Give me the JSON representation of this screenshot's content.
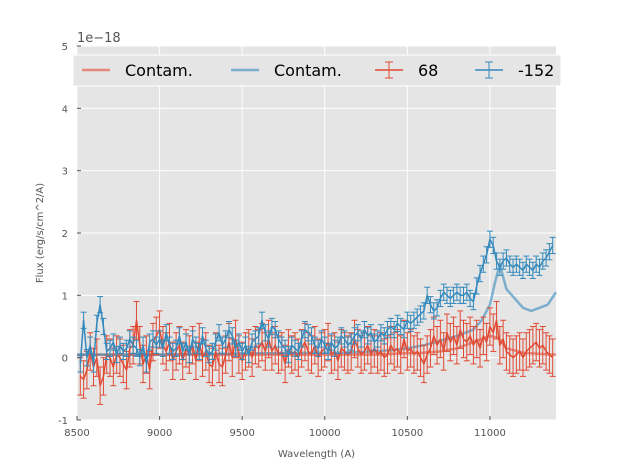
{
  "chart_data": {
    "type": "line",
    "xlabel": "Wavelength (A)",
    "ylabel": "Flux (erg/s/cm^2/A)",
    "y_offset_label": "1e−18",
    "xlim": [
      8500,
      11400
    ],
    "ylim": [
      -1,
      5
    ],
    "xticks": [
      8500,
      9000,
      9500,
      10000,
      10500,
      11000
    ],
    "yticks": [
      -1,
      0,
      1,
      2,
      3,
      4,
      5
    ],
    "grid": true,
    "legend_position": "top",
    "legend": [
      "Contam.",
      "Contam.",
      "68",
      "-152"
    ],
    "colors": {
      "red": "#e24a33",
      "blue": "#348abd",
      "axes_bg": "#e5e5e5",
      "grid": "#ffffff"
    },
    "contamination": [
      {
        "name": "Contam.",
        "color": "#e24a33",
        "x": [
          8500,
          8600,
          8700,
          8800,
          8900,
          9000,
          9100,
          9200,
          9300,
          9400,
          9500,
          9600,
          9700,
          9800,
          9900,
          10000,
          10100,
          10200,
          10300,
          10400,
          10500,
          10600,
          10700,
          10800,
          10900,
          11000,
          11050,
          11100,
          11200,
          11300,
          11400
        ],
        "y": [
          0.05,
          0.05,
          0.05,
          0.05,
          0.05,
          0.05,
          0.05,
          0.05,
          0.05,
          0.05,
          0.05,
          0.05,
          0.05,
          0.05,
          0.05,
          0.05,
          0.05,
          0.05,
          0.05,
          0.06,
          0.07,
          0.08,
          0.1,
          0.15,
          0.25,
          0.35,
          0.32,
          0.15,
          0.08,
          0.06,
          0.05
        ]
      },
      {
        "name": "Contam.",
        "color": "#348abd",
        "x": [
          8500,
          8600,
          8700,
          8800,
          8900,
          9000,
          9100,
          9200,
          9300,
          9400,
          9500,
          9600,
          9700,
          9800,
          9900,
          10000,
          10100,
          10200,
          10300,
          10400,
          10500,
          10600,
          10700,
          10800,
          10900,
          10950,
          11000,
          11030,
          11060,
          11100,
          11150,
          11200,
          11250,
          11300,
          11350,
          11400
        ],
        "y": [
          0.05,
          0.05,
          0.05,
          0.05,
          0.05,
          0.05,
          0.05,
          0.06,
          0.06,
          0.06,
          0.07,
          0.07,
          0.07,
          0.07,
          0.08,
          0.08,
          0.08,
          0.09,
          0.1,
          0.12,
          0.15,
          0.2,
          0.27,
          0.35,
          0.45,
          0.6,
          0.85,
          1.2,
          1.5,
          1.1,
          0.95,
          0.8,
          0.75,
          0.8,
          0.85,
          1.05
        ]
      }
    ],
    "series": [
      {
        "name": "68",
        "color": "#e24a33",
        "x": [
          8520,
          8540,
          8560,
          8580,
          8600,
          8620,
          8640,
          8660,
          8680,
          8700,
          8720,
          8740,
          8760,
          8780,
          8800,
          8820,
          8840,
          8860,
          8880,
          8900,
          8920,
          8940,
          8960,
          8980,
          9000,
          9020,
          9040,
          9060,
          9080,
          9100,
          9120,
          9140,
          9160,
          9180,
          9200,
          9220,
          9240,
          9260,
          9280,
          9300,
          9320,
          9340,
          9360,
          9380,
          9400,
          9420,
          9440,
          9460,
          9480,
          9500,
          9520,
          9540,
          9560,
          9580,
          9600,
          9620,
          9640,
          9660,
          9680,
          9700,
          9720,
          9740,
          9760,
          9780,
          9800,
          9820,
          9840,
          9860,
          9880,
          9900,
          9920,
          9940,
          9960,
          9980,
          10000,
          10020,
          10040,
          10060,
          10080,
          10100,
          10120,
          10140,
          10160,
          10180,
          10200,
          10220,
          10240,
          10260,
          10280,
          10300,
          10320,
          10340,
          10360,
          10380,
          10400,
          10420,
          10440,
          10460,
          10480,
          10500,
          10520,
          10540,
          10560,
          10580,
          10600,
          10620,
          10640,
          10660,
          10680,
          10700,
          10720,
          10740,
          10760,
          10780,
          10800,
          10820,
          10840,
          10860,
          10880,
          10900,
          10920,
          10940,
          10960,
          10980,
          11000,
          11020,
          11040,
          11060,
          11080,
          11100,
          11120,
          11140,
          11160,
          11180,
          11200,
          11220,
          11240,
          11260,
          11280,
          11300,
          11320,
          11340,
          11360,
          11380
        ],
        "y": [
          -0.3,
          -0.35,
          -0.2,
          0.1,
          -0.15,
          0.0,
          -0.45,
          -0.3,
          0.05,
          0.0,
          -0.15,
          0.05,
          0.0,
          -0.1,
          -0.2,
          0.15,
          0.2,
          0.6,
          0.2,
          -0.1,
          0.05,
          -0.2,
          0.25,
          0.35,
          0.45,
          0.2,
          0.1,
          0.25,
          -0.05,
          0.1,
          0.2,
          -0.05,
          0.15,
          0.05,
          0.2,
          -0.05,
          0.25,
          0.0,
          0.1,
          -0.1,
          -0.15,
          0.1,
          -0.1,
          -0.15,
          0.05,
          0.25,
          0.0,
          0.3,
          0.05,
          -0.05,
          0.1,
          0.15,
          0.0,
          0.2,
          0.15,
          0.25,
          0.1,
          0.3,
          0.1,
          0.2,
          0.05,
          0.1,
          -0.1,
          0.15,
          0.05,
          0.1,
          0.0,
          0.15,
          0.25,
          0.1,
          0.05,
          0.2,
          0.0,
          0.1,
          0.15,
          0.25,
          0.05,
          0.1,
          -0.05,
          0.15,
          0.1,
          0.05,
          0.1,
          0.3,
          0.15,
          0.05,
          0.1,
          0.2,
          0.05,
          0.15,
          0.05,
          0.1,
          0.0,
          0.05,
          0.2,
          0.1,
          0.15,
          0.05,
          0.3,
          0.1,
          0.15,
          0.05,
          0.1,
          0.0,
          -0.1,
          0.05,
          0.15,
          0.35,
          0.2,
          0.3,
          0.1,
          0.4,
          0.25,
          0.35,
          0.2,
          0.45,
          0.3,
          0.25,
          0.35,
          0.2,
          0.3,
          0.15,
          0.35,
          0.25,
          0.5,
          0.4,
          0.6,
          0.2,
          0.3,
          0.1,
          0.05,
          0.0,
          0.05,
          0.1,
          0.0,
          0.1,
          0.15,
          0.2,
          0.25,
          0.15,
          0.2,
          0.1,
          0.05,
          0.0
        ],
        "err": 0.3
      },
      {
        "name": "-152",
        "color": "#348abd",
        "x": [
          8520,
          8540,
          8560,
          8580,
          8600,
          8620,
          8640,
          8660,
          8680,
          8700,
          8720,
          8740,
          8760,
          8780,
          8800,
          8820,
          8840,
          8860,
          8880,
          8900,
          8920,
          8940,
          8960,
          8980,
          9000,
          9020,
          9040,
          9060,
          9080,
          9100,
          9120,
          9140,
          9160,
          9180,
          9200,
          9220,
          9240,
          9260,
          9280,
          9300,
          9320,
          9340,
          9360,
          9380,
          9400,
          9420,
          9440,
          9460,
          9480,
          9500,
          9520,
          9540,
          9560,
          9580,
          9600,
          9620,
          9640,
          9660,
          9680,
          9700,
          9720,
          9740,
          9760,
          9780,
          9800,
          9820,
          9840,
          9860,
          9880,
          9900,
          9920,
          9940,
          9960,
          9980,
          10000,
          10020,
          10040,
          10060,
          10080,
          10100,
          10120,
          10140,
          10160,
          10180,
          10200,
          10220,
          10240,
          10260,
          10280,
          10300,
          10320,
          10340,
          10360,
          10380,
          10400,
          10420,
          10440,
          10460,
          10480,
          10500,
          10520,
          10540,
          10560,
          10580,
          10600,
          10620,
          10640,
          10660,
          10680,
          10700,
          10720,
          10740,
          10760,
          10780,
          10800,
          10820,
          10840,
          10860,
          10880,
          10900,
          10920,
          10940,
          10960,
          10980,
          11000,
          11020,
          11040,
          11060,
          11080,
          11100,
          11120,
          11140,
          11160,
          11180,
          11200,
          11220,
          11240,
          11260,
          11280,
          11300,
          11320,
          11340,
          11360,
          11380
        ],
        "y": [
          -0.1,
          0.6,
          0.0,
          0.2,
          -0.1,
          0.55,
          0.85,
          0.5,
          0.1,
          0.15,
          0.25,
          0.05,
          0.2,
          0.1,
          0.15,
          0.3,
          0.2,
          0.15,
          0.0,
          0.2,
          -0.1,
          0.25,
          0.3,
          0.2,
          0.3,
          0.15,
          0.4,
          0.2,
          0.1,
          0.15,
          0.35,
          0.1,
          0.25,
          0.05,
          0.3,
          0.2,
          0.1,
          0.35,
          0.15,
          0.05,
          0.1,
          0.25,
          0.4,
          0.2,
          0.3,
          0.45,
          0.35,
          0.15,
          0.25,
          0.1,
          0.2,
          0.05,
          0.25,
          0.3,
          0.35,
          0.6,
          0.4,
          0.3,
          0.5,
          0.45,
          0.3,
          0.2,
          0.15,
          0.05,
          0.2,
          0.15,
          0.1,
          0.3,
          0.45,
          0.4,
          0.35,
          0.2,
          0.15,
          0.3,
          0.2,
          0.1,
          0.25,
          0.15,
          0.2,
          0.35,
          0.3,
          0.2,
          0.25,
          0.35,
          0.4,
          0.3,
          0.45,
          0.35,
          0.4,
          0.25,
          0.3,
          0.4,
          0.35,
          0.45,
          0.5,
          0.45,
          0.55,
          0.5,
          0.45,
          0.6,
          0.55,
          0.6,
          0.65,
          0.7,
          0.75,
          1.0,
          0.85,
          0.75,
          0.8,
          0.95,
          1.05,
          1.0,
          0.95,
          1.0,
          1.05,
          1.0,
          1.0,
          1.05,
          0.95,
          0.9,
          1.15,
          1.35,
          1.5,
          1.65,
          1.9,
          1.8,
          1.55,
          1.45,
          1.55,
          1.6,
          1.5,
          1.45,
          1.5,
          1.45,
          1.4,
          1.5,
          1.45,
          1.4,
          1.5,
          1.45,
          1.55,
          1.6,
          1.7,
          1.8
        ],
        "err": 0.13
      }
    ]
  }
}
